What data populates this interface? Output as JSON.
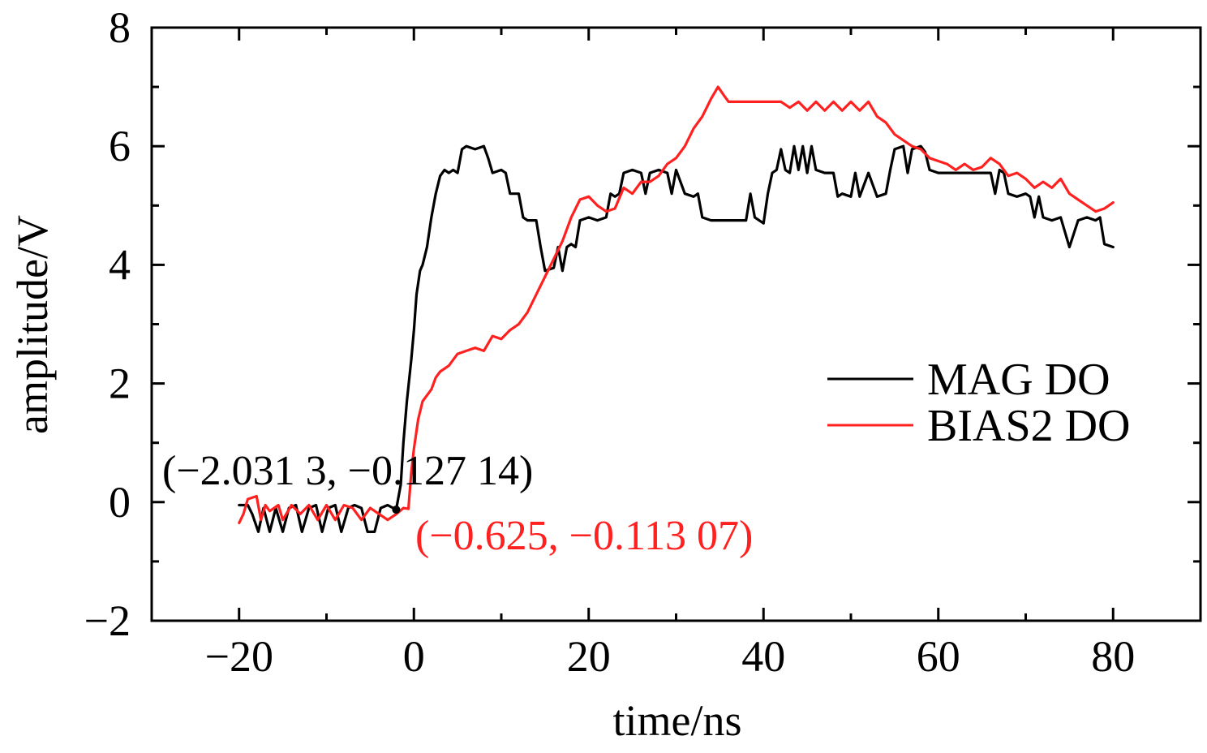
{
  "chart_data": {
    "type": "line",
    "xlabel": "time/ns",
    "ylabel": "amplitude/V",
    "xlim": [
      -30,
      90
    ],
    "ylim": [
      -2,
      8
    ],
    "xticks": [
      -20,
      0,
      20,
      40,
      60,
      80
    ],
    "xtick_labels": [
      "−20",
      "0",
      "20",
      "40",
      "60",
      "80"
    ],
    "yticks": [
      -2,
      0,
      2,
      4,
      6,
      8
    ],
    "ytick_labels": [
      "−2",
      "0",
      "2",
      "4",
      "6",
      "8"
    ],
    "grid": false,
    "legend_position": "right",
    "series": [
      {
        "name": "MAG DO",
        "color": "#000000",
        "points": [
          [
            -20,
            -0.05
          ],
          [
            -19,
            -0.05
          ],
          [
            -18.5,
            -0.2
          ],
          [
            -17.8,
            -0.5
          ],
          [
            -17.2,
            -0.1
          ],
          [
            -16.5,
            -0.5
          ],
          [
            -15.8,
            -0.1
          ],
          [
            -15,
            -0.5
          ],
          [
            -14.3,
            -0.1
          ],
          [
            -13.5,
            -0.05
          ],
          [
            -12.8,
            -0.5
          ],
          [
            -12,
            -0.1
          ],
          [
            -11.2,
            -0.05
          ],
          [
            -10.5,
            -0.5
          ],
          [
            -9.8,
            -0.1
          ],
          [
            -9,
            -0.05
          ],
          [
            -8.3,
            -0.5
          ],
          [
            -7.5,
            -0.1
          ],
          [
            -6.8,
            -0.05
          ],
          [
            -6,
            -0.1
          ],
          [
            -5.3,
            -0.5
          ],
          [
            -4.5,
            -0.5
          ],
          [
            -3.8,
            -0.1
          ],
          [
            -3,
            -0.05
          ],
          [
            -2.0313,
            -0.12714
          ],
          [
            -1.5,
            0.3
          ],
          [
            -1.2,
            1.0
          ],
          [
            -0.8,
            1.7
          ],
          [
            -0.3,
            2.4
          ],
          [
            0,
            2.9
          ],
          [
            0.3,
            3.5
          ],
          [
            0.7,
            3.9
          ],
          [
            1.0,
            4.0
          ],
          [
            1.5,
            4.3
          ],
          [
            2.0,
            4.8
          ],
          [
            2.5,
            5.2
          ],
          [
            3.0,
            5.5
          ],
          [
            3.5,
            5.6
          ],
          [
            4.0,
            5.55
          ],
          [
            4.5,
            5.6
          ],
          [
            5.0,
            5.55
          ],
          [
            5.5,
            5.95
          ],
          [
            6.0,
            6.0
          ],
          [
            7.0,
            5.95
          ],
          [
            8.0,
            6.0
          ],
          [
            8.5,
            5.8
          ],
          [
            9.0,
            5.55
          ],
          [
            10.0,
            5.6
          ],
          [
            10.5,
            5.55
          ],
          [
            11.0,
            5.2
          ],
          [
            12.0,
            5.2
          ],
          [
            12.5,
            4.8
          ],
          [
            13.0,
            4.75
          ],
          [
            14.0,
            4.75
          ],
          [
            14.5,
            4.3
          ],
          [
            15.0,
            3.9
          ],
          [
            16.0,
            3.95
          ],
          [
            16.5,
            4.3
          ],
          [
            17.0,
            3.9
          ],
          [
            17.5,
            4.3
          ],
          [
            18.0,
            4.35
          ],
          [
            18.5,
            4.3
          ],
          [
            19.0,
            4.75
          ],
          [
            20.0,
            4.8
          ],
          [
            21.0,
            4.75
          ],
          [
            22.0,
            4.8
          ],
          [
            22.5,
            5.2
          ],
          [
            23.0,
            5.15
          ],
          [
            23.5,
            5.2
          ],
          [
            24.0,
            5.55
          ],
          [
            25.0,
            5.6
          ],
          [
            26.0,
            5.55
          ],
          [
            26.5,
            5.2
          ],
          [
            27.0,
            5.55
          ],
          [
            28.0,
            5.6
          ],
          [
            29.0,
            5.55
          ],
          [
            29.5,
            5.2
          ],
          [
            30.0,
            5.6
          ],
          [
            31.0,
            5.2
          ],
          [
            32.0,
            5.15
          ],
          [
            32.5,
            5.2
          ],
          [
            33.0,
            4.8
          ],
          [
            34.0,
            4.75
          ],
          [
            36.0,
            4.75
          ],
          [
            38.0,
            4.75
          ],
          [
            38.5,
            5.2
          ],
          [
            39.0,
            4.8
          ],
          [
            39.5,
            4.75
          ],
          [
            40.0,
            4.7
          ],
          [
            40.5,
            5.2
          ],
          [
            41.0,
            5.55
          ],
          [
            41.5,
            5.6
          ],
          [
            42.0,
            5.95
          ],
          [
            42.5,
            5.6
          ],
          [
            43.0,
            5.55
          ],
          [
            43.5,
            6.0
          ],
          [
            44.0,
            5.6
          ],
          [
            44.5,
            6.0
          ],
          [
            45.0,
            5.55
          ],
          [
            45.5,
            6.0
          ],
          [
            46.0,
            5.6
          ],
          [
            47.0,
            5.55
          ],
          [
            48.0,
            5.55
          ],
          [
            48.5,
            5.15
          ],
          [
            49.0,
            5.2
          ],
          [
            50.0,
            5.15
          ],
          [
            50.5,
            5.55
          ],
          [
            51.0,
            5.15
          ],
          [
            52.0,
            5.55
          ],
          [
            53.0,
            5.15
          ],
          [
            54.0,
            5.2
          ],
          [
            54.5,
            5.6
          ],
          [
            55.0,
            5.95
          ],
          [
            56.0,
            6.0
          ],
          [
            56.5,
            5.55
          ],
          [
            57.0,
            5.95
          ],
          [
            58.0,
            6.0
          ],
          [
            58.5,
            5.9
          ],
          [
            59.0,
            5.6
          ],
          [
            60.0,
            5.55
          ],
          [
            62.0,
            5.55
          ],
          [
            64.0,
            5.55
          ],
          [
            66.0,
            5.55
          ],
          [
            66.5,
            5.2
          ],
          [
            67.0,
            5.6
          ],
          [
            67.5,
            5.55
          ],
          [
            68.0,
            5.2
          ],
          [
            69.0,
            5.15
          ],
          [
            70.0,
            5.2
          ],
          [
            70.5,
            5.15
          ],
          [
            71.0,
            4.8
          ],
          [
            71.5,
            5.15
          ],
          [
            72.0,
            4.8
          ],
          [
            73.0,
            4.75
          ],
          [
            74.0,
            4.8
          ],
          [
            75.0,
            4.3
          ],
          [
            76.0,
            4.75
          ],
          [
            77.0,
            4.8
          ],
          [
            78.0,
            4.75
          ],
          [
            78.5,
            4.8
          ],
          [
            79.0,
            4.35
          ],
          [
            80.0,
            4.3
          ]
        ]
      },
      {
        "name": "BIAS2 DO",
        "color": "#ff2020",
        "points": [
          [
            -20,
            -0.35
          ],
          [
            -19.5,
            -0.2
          ],
          [
            -19,
            0.05
          ],
          [
            -18,
            0.1
          ],
          [
            -17.5,
            -0.3
          ],
          [
            -17,
            -0.05
          ],
          [
            -16.5,
            -0.15
          ],
          [
            -15.5,
            -0.05
          ],
          [
            -15,
            -0.3
          ],
          [
            -14,
            -0.05
          ],
          [
            -13,
            -0.2
          ],
          [
            -12,
            -0.05
          ],
          [
            -11,
            -0.3
          ],
          [
            -10,
            -0.05
          ],
          [
            -9,
            -0.3
          ],
          [
            -8,
            -0.05
          ],
          [
            -7,
            -0.1
          ],
          [
            -6,
            -0.3
          ],
          [
            -5,
            -0.1
          ],
          [
            -4,
            -0.2
          ],
          [
            -3,
            -0.3
          ],
          [
            -2,
            -0.2
          ],
          [
            -1.2,
            -0.1
          ],
          [
            -0.625,
            -0.11307
          ],
          [
            -0.3,
            0.5
          ],
          [
            0,
            0.9
          ],
          [
            0.5,
            1.4
          ],
          [
            1.0,
            1.7
          ],
          [
            1.5,
            1.8
          ],
          [
            2.0,
            1.9
          ],
          [
            2.5,
            2.1
          ],
          [
            3.0,
            2.2
          ],
          [
            4.0,
            2.3
          ],
          [
            5.0,
            2.5
          ],
          [
            6.0,
            2.55
          ],
          [
            7.0,
            2.6
          ],
          [
            8.0,
            2.55
          ],
          [
            9.0,
            2.8
          ],
          [
            10.0,
            2.75
          ],
          [
            11.0,
            2.9
          ],
          [
            12.0,
            3.0
          ],
          [
            13.0,
            3.2
          ],
          [
            14.0,
            3.5
          ],
          [
            15.0,
            3.8
          ],
          [
            16.0,
            4.1
          ],
          [
            17.0,
            4.4
          ],
          [
            18.0,
            4.8
          ],
          [
            19.0,
            5.1
          ],
          [
            20.0,
            5.15
          ],
          [
            21.0,
            5.0
          ],
          [
            22.0,
            4.9
          ],
          [
            23.0,
            4.95
          ],
          [
            24.0,
            5.3
          ],
          [
            25.0,
            5.2
          ],
          [
            26.0,
            5.4
          ],
          [
            27.0,
            5.4
          ],
          [
            28.0,
            5.5
          ],
          [
            29.0,
            5.7
          ],
          [
            30.0,
            5.8
          ],
          [
            31.0,
            6.0
          ],
          [
            32.0,
            6.3
          ],
          [
            33.0,
            6.5
          ],
          [
            34.0,
            6.8
          ],
          [
            34.8,
            7.0
          ],
          [
            35.5,
            6.85
          ],
          [
            36.0,
            6.75
          ],
          [
            38.0,
            6.75
          ],
          [
            40.0,
            6.75
          ],
          [
            42.0,
            6.75
          ],
          [
            43.0,
            6.65
          ],
          [
            44.0,
            6.75
          ],
          [
            45.0,
            6.6
          ],
          [
            46.0,
            6.75
          ],
          [
            47.0,
            6.6
          ],
          [
            48.0,
            6.75
          ],
          [
            49.0,
            6.6
          ],
          [
            50.0,
            6.75
          ],
          [
            51.0,
            6.6
          ],
          [
            52.0,
            6.75
          ],
          [
            53.0,
            6.5
          ],
          [
            54.0,
            6.4
          ],
          [
            55.0,
            6.2
          ],
          [
            56.0,
            6.1
          ],
          [
            57.0,
            6.0
          ],
          [
            58.0,
            5.95
          ],
          [
            59.0,
            5.8
          ],
          [
            60.0,
            5.75
          ],
          [
            61.0,
            5.7
          ],
          [
            62.0,
            5.6
          ],
          [
            63.0,
            5.7
          ],
          [
            64.0,
            5.6
          ],
          [
            65.0,
            5.65
          ],
          [
            66.0,
            5.8
          ],
          [
            67.0,
            5.7
          ],
          [
            68.0,
            5.5
          ],
          [
            69.0,
            5.55
          ],
          [
            70.0,
            5.45
          ],
          [
            71.0,
            5.3
          ],
          [
            72.0,
            5.4
          ],
          [
            73.0,
            5.3
          ],
          [
            74.0,
            5.45
          ],
          [
            75.0,
            5.2
          ],
          [
            76.0,
            5.1
          ],
          [
            77.0,
            5.0
          ],
          [
            78.0,
            4.9
          ],
          [
            79.0,
            4.95
          ],
          [
            80.0,
            5.05
          ]
        ]
      }
    ],
    "annotations": [
      {
        "text": "(−2.031 3, −0.127 14)",
        "x": -2.0313,
        "y": -0.12714,
        "color": "#000000"
      },
      {
        "text": "(−0.625, −0.113 07)",
        "x": -0.625,
        "y": -0.11307,
        "color": "#ff2020"
      }
    ]
  }
}
